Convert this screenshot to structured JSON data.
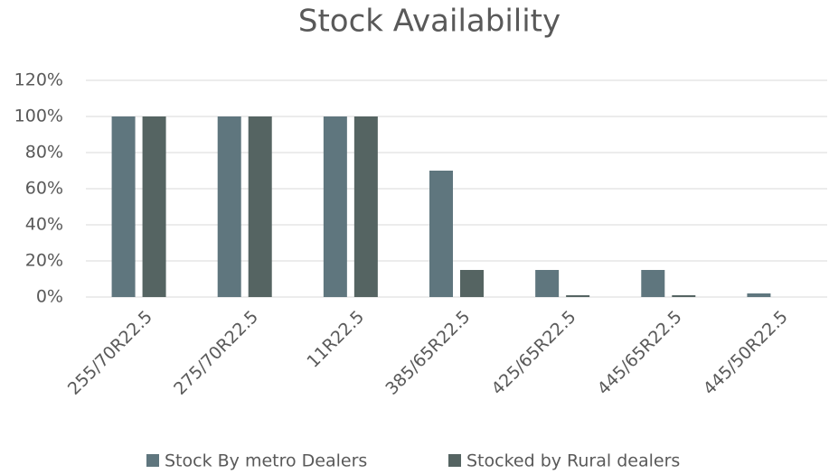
{
  "chart_data": {
    "type": "bar",
    "title": "Stock Availability",
    "categories": [
      "255/70R22.5",
      "275/70R22.5",
      "11R22.5",
      "385/65R22.5",
      "425/65R22.5",
      "445/65R22.5",
      "445/50R22.5"
    ],
    "series": [
      {
        "name": "Stock By metro Dealers",
        "color": "#5f767e",
        "values": [
          100,
          100,
          100,
          70,
          15,
          15,
          2
        ]
      },
      {
        "name": "Stocked by Rural dealers",
        "color": "#556462",
        "values": [
          100,
          100,
          100,
          15,
          1,
          1,
          0
        ]
      }
    ],
    "ylim": [
      0,
      120
    ],
    "yticks": [
      {
        "value": 0,
        "label": "0%"
      },
      {
        "value": 20,
        "label": "20%"
      },
      {
        "value": 40,
        "label": "40%"
      },
      {
        "value": 60,
        "label": "60%"
      },
      {
        "value": 80,
        "label": "80%"
      },
      {
        "value": 100,
        "label": "100%"
      },
      {
        "value": 120,
        "label": "120%"
      }
    ],
    "grid": true,
    "legend": "bottom"
  }
}
